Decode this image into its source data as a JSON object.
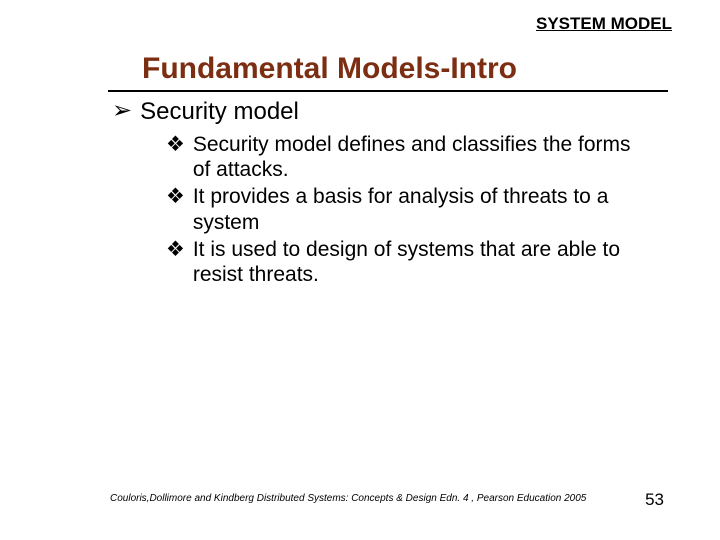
{
  "header_label": "SYSTEM MODEL",
  "title": "Fundamental Models-Intro",
  "bullet_glyphs": {
    "arrow": "➢",
    "diamond": "❖"
  },
  "colors": {
    "title": "#7c2e12",
    "text": "#000000",
    "rule": "#000000",
    "background": "#ffffff"
  },
  "fonts": {
    "title_size": 30,
    "level1_size": 24,
    "level2_size": 21,
    "header_size": 17,
    "footer_size": 10,
    "page_size": 17
  },
  "level1_text": "Security model",
  "level2_items": [
    "Security model defines and classifies the forms of attacks.",
    "It provides a basis for analysis of threats to a system",
    "It is used to design of systems that are able to resist threats."
  ],
  "footer_citation": "Couloris,Dollimore and Kindberg  Distributed Systems: Concepts & Design  Edn. 4 , Pearson Education 2005",
  "page_number": "53"
}
